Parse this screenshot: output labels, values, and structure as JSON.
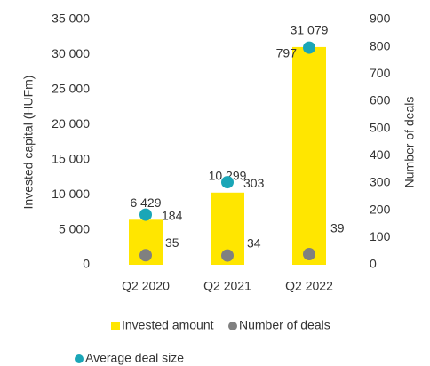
{
  "chart_data": {
    "type": "bar",
    "categories": [
      "Q2 2020",
      "Q2 2021",
      "Q2 2022"
    ],
    "ylabel": "Invested capital (HUFm)",
    "y2label": "Number of deals",
    "ylim": [
      0,
      35000
    ],
    "yticks": [
      0,
      {
        "value": 5000,
        "label": "5 000"
      },
      {
        "value": 10000,
        "label": "10 000"
      },
      {
        "value": 15000,
        "label": "15 000"
      },
      {
        "value": 20000,
        "label": "20 000"
      },
      {
        "value": 25000,
        "label": "25 000"
      },
      {
        "value": 30000,
        "label": "30 000"
      },
      {
        "value": 35000,
        "label": "35 000"
      }
    ],
    "y2lim": [
      0,
      900
    ],
    "y2ticks": [
      0,
      100,
      200,
      300,
      400,
      500,
      600,
      700,
      800,
      900
    ],
    "series": [
      {
        "name": "Invested amount",
        "type": "bar",
        "color": "#ffe600",
        "values": [
          6429,
          10299,
          31079
        ],
        "value_labels": [
          "6 429",
          "10 299",
          "31 079"
        ]
      },
      {
        "name": "Number of deals",
        "type": "scatter",
        "axis": "y2",
        "color": "#808080",
        "values": [
          35,
          34,
          39
        ]
      },
      {
        "name": "Average deal size",
        "type": "scatter",
        "axis": "y2",
        "color": "#1aa6b7",
        "values": [
          184,
          303,
          797
        ]
      }
    ]
  }
}
